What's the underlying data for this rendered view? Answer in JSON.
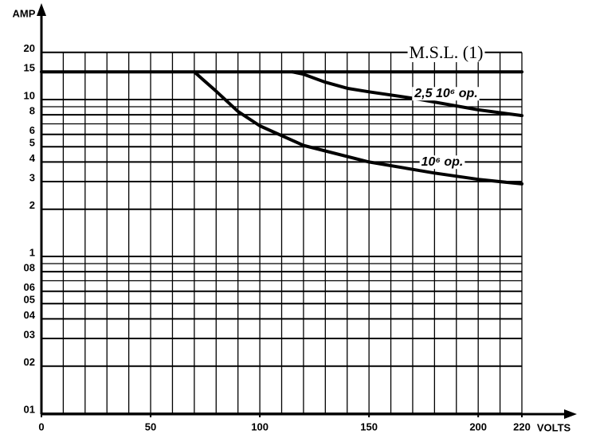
{
  "chart_data": {
    "type": "line",
    "y_label": "AMP",
    "x_label": "VOLTS",
    "log_y": true,
    "xlim": [
      0,
      220
    ],
    "ylim": [
      0.1,
      20
    ],
    "xticks": [
      0,
      50,
      100,
      150,
      200,
      220
    ],
    "yticks": [
      20,
      15,
      10,
      8,
      6,
      5,
      4,
      3,
      2,
      1,
      {
        "value": 0.8,
        "label": "08"
      },
      {
        "value": 0.6,
        "label": "06"
      },
      {
        "value": 0.5,
        "label": "05"
      },
      {
        "value": 0.4,
        "label": "04"
      },
      {
        "value": 0.3,
        "label": "03"
      },
      {
        "value": 0.2,
        "label": "02"
      },
      {
        "value": 0.1,
        "label": "01"
      }
    ],
    "xgrid": [
      10,
      20,
      30,
      40,
      50,
      60,
      70,
      80,
      90,
      100,
      110,
      120,
      130,
      140,
      150,
      160,
      170,
      180,
      190,
      200,
      210,
      220
    ],
    "ygrid": [
      0.7,
      0.9,
      7,
      9
    ],
    "series": [
      {
        "name": "M.S.L. (1)",
        "color": "#000",
        "x": [
          0,
          220
        ],
        "values": [
          15,
          15
        ]
      },
      {
        "name": "2,5 10⁶ op.",
        "color": "#000",
        "x": [
          115,
          120,
          130,
          140,
          150,
          170,
          200,
          220
        ],
        "values": [
          15,
          14.5,
          12.9,
          11.8,
          11.2,
          10.2,
          8.6,
          7.9
        ]
      },
      {
        "name": "10⁶ op.",
        "color": "#000",
        "x": [
          70,
          80,
          90,
          100,
          120,
          150,
          180,
          200,
          220
        ],
        "values": [
          15,
          11.3,
          8.4,
          6.8,
          5.1,
          4.0,
          3.4,
          3.1,
          2.9
        ]
      }
    ]
  }
}
